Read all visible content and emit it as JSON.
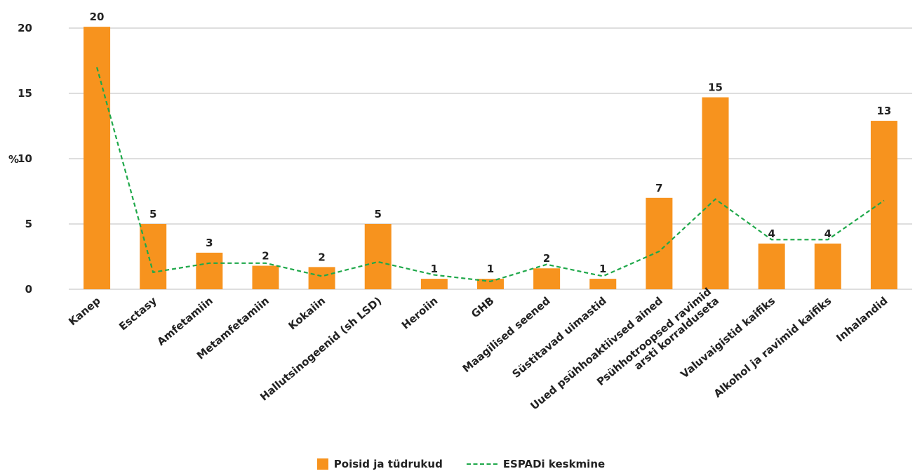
{
  "chart_data": {
    "type": "bar",
    "ylabel": "%",
    "ylim": [
      0,
      20
    ],
    "yticks": [
      "0",
      "5",
      "10",
      "15",
      "20"
    ],
    "grid": true,
    "legend_position": "bottom",
    "categories": [
      "Kanep",
      "Esctasy",
      "Amfetamiin",
      "Metamfetamiin",
      "Kokaiin",
      "Hallutsinogeenid (sh LSD)",
      "Heroiin",
      "GHB",
      "Maagilised seened",
      "Süstitavad uimastid",
      "Uued psühhoaktiivsed ained",
      "Psühhotroopsed ravimid\narsti korralduseta",
      "Valuvaigistid kaifiks",
      "Alkohol ja ravimid kaifiks",
      "Inhalandid"
    ],
    "series": [
      {
        "name": "Poisid ja tüdrukud",
        "kind": "bar",
        "color": "#f7931e",
        "values": [
          20.1,
          5.0,
          2.8,
          1.8,
          1.7,
          5.0,
          0.8,
          0.8,
          1.6,
          0.8,
          7.0,
          14.7,
          3.5,
          3.5,
          12.9
        ],
        "labels": [
          "20",
          "5",
          "3",
          "2",
          "2",
          "5",
          "1",
          "1",
          "2",
          "1",
          "7",
          "15",
          "4",
          "4",
          "13"
        ]
      },
      {
        "name": "ESPADi keskmine",
        "kind": "line",
        "style": "dashed",
        "color": "#1fa84a",
        "values": [
          17.0,
          1.3,
          2.0,
          2.0,
          1.0,
          2.1,
          1.1,
          0.6,
          1.9,
          1.0,
          2.9,
          6.9,
          3.8,
          3.8,
          6.8
        ]
      }
    ]
  }
}
